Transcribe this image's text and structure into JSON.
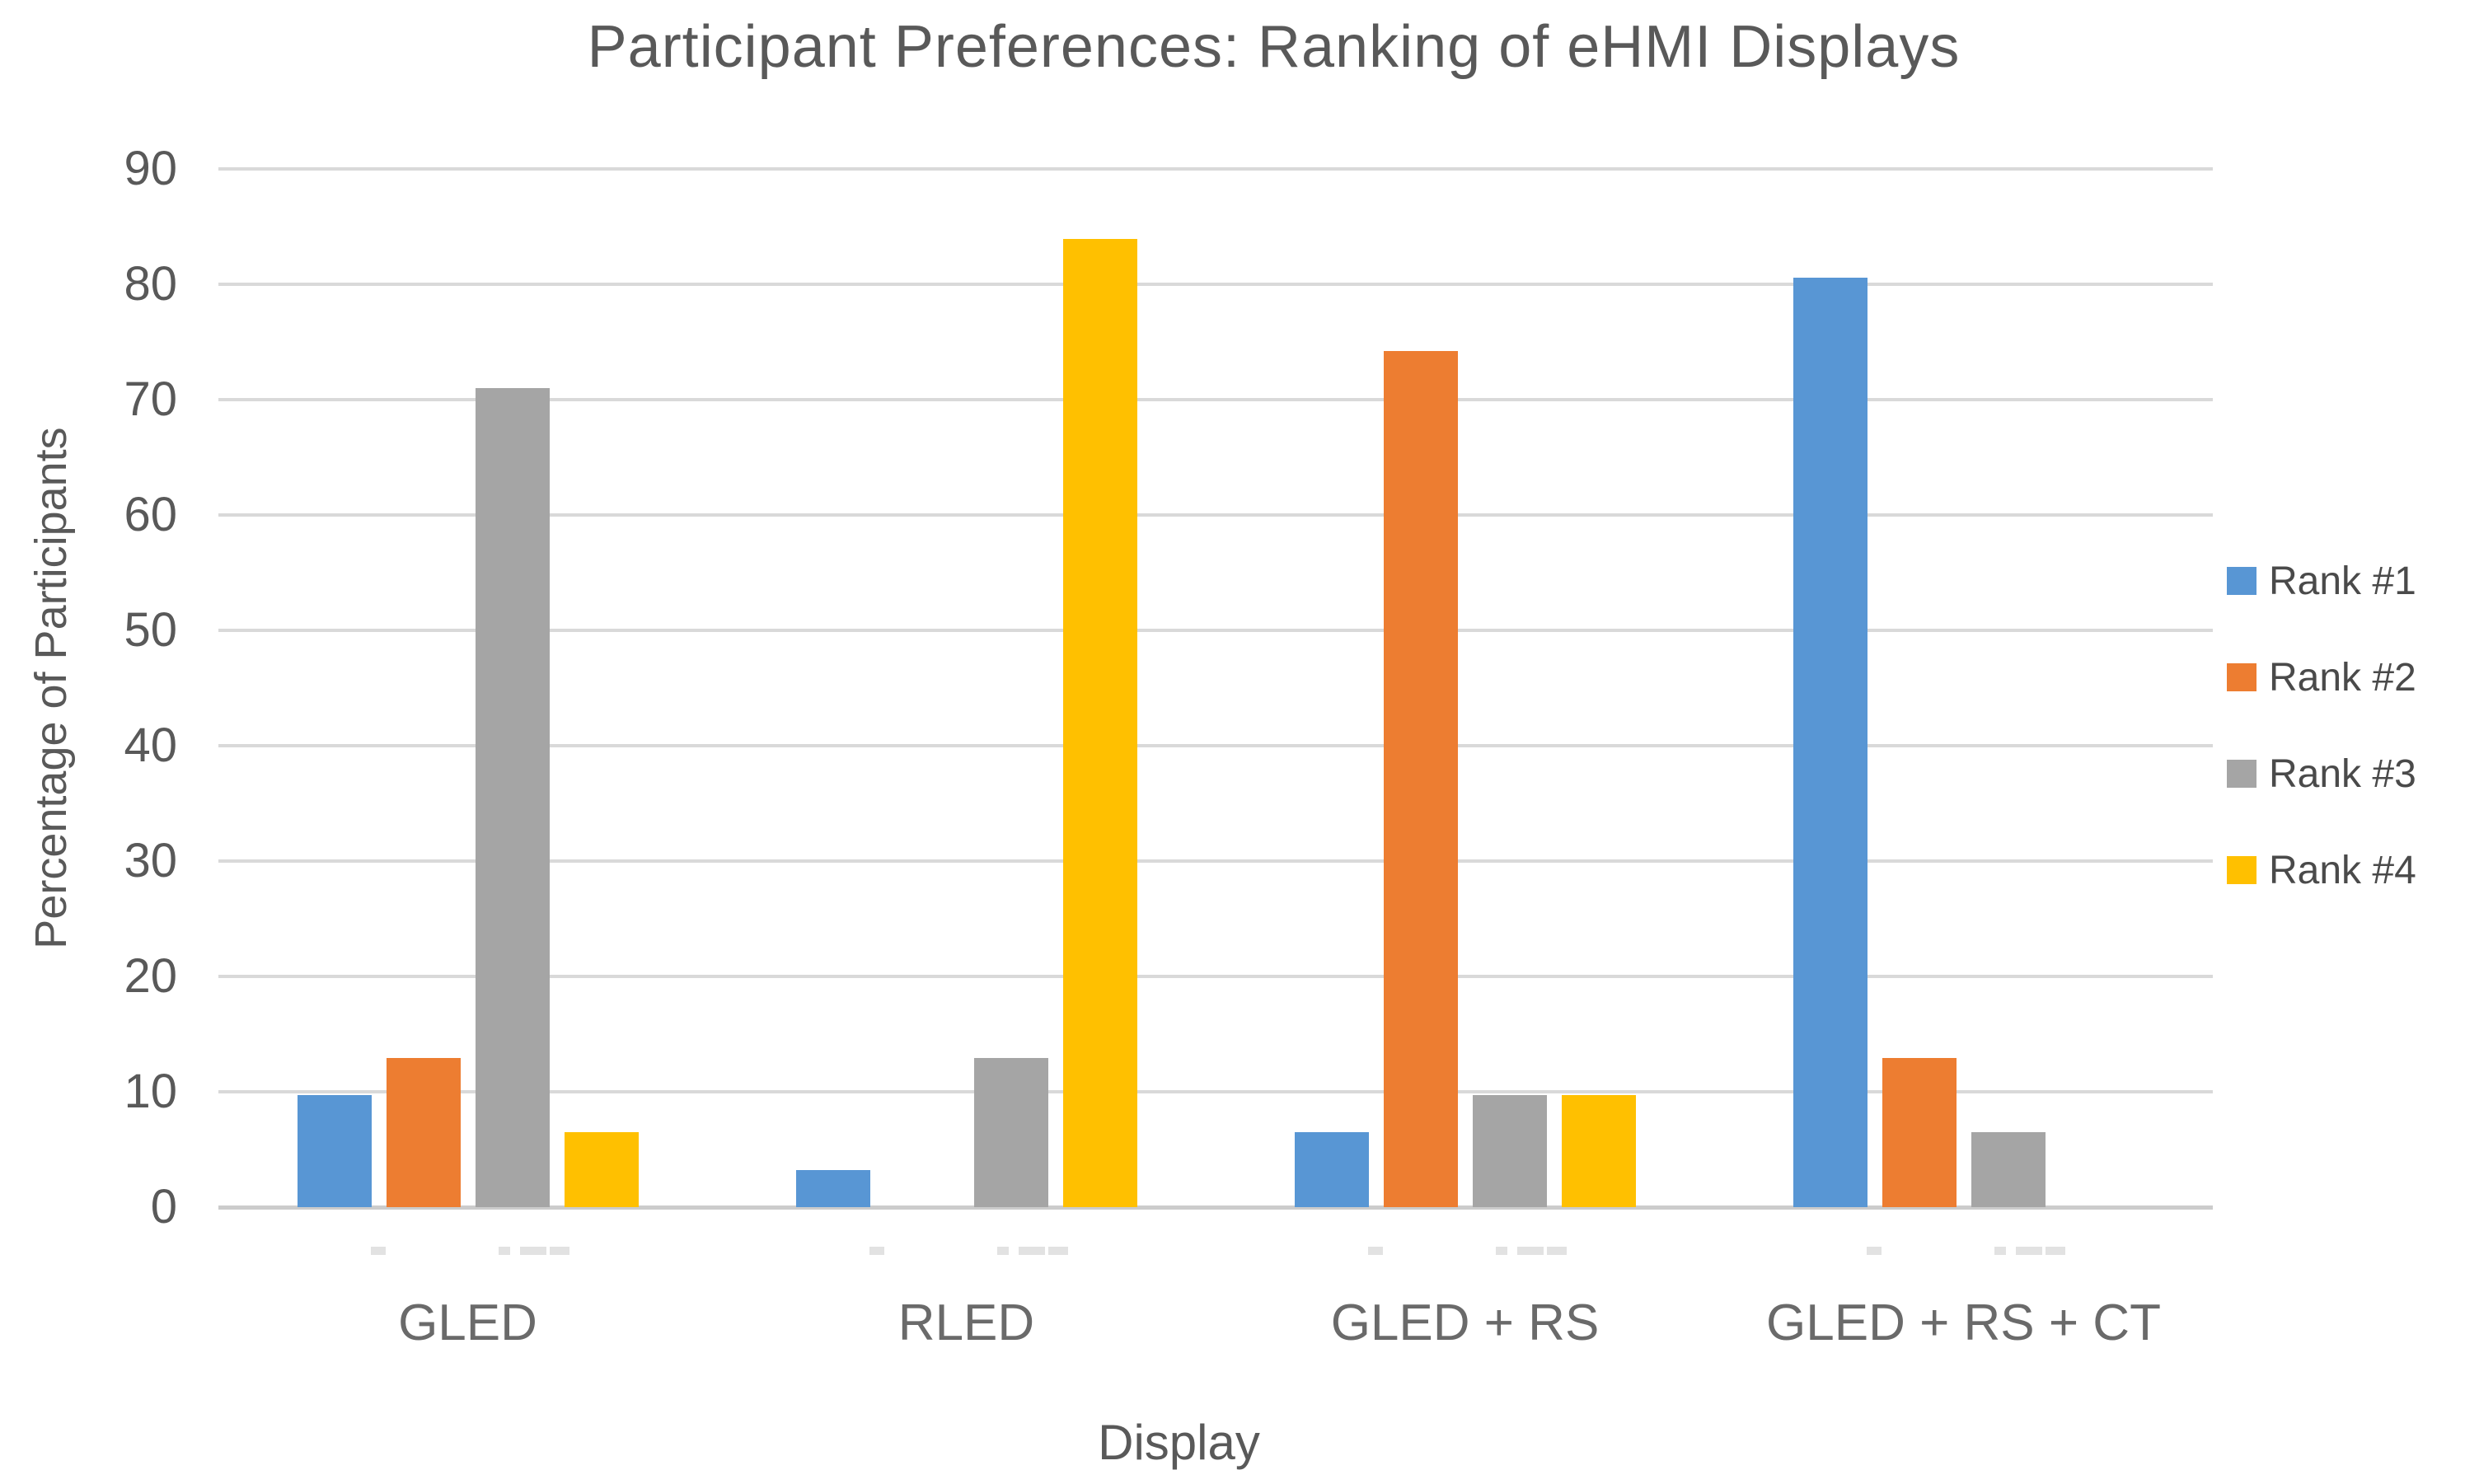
{
  "chart_data": {
    "type": "bar",
    "title": "Participant Preferences: Ranking of eHMI Displays",
    "xlabel": "Display",
    "ylabel": "Percentage of Participants",
    "ylim": [
      0,
      90
    ],
    "ytick_step": 10,
    "yticks": [
      0,
      10,
      20,
      30,
      40,
      50,
      60,
      70,
      80,
      90
    ],
    "grid": true,
    "legend_position": "right",
    "categories": [
      "GLED",
      "RLED",
      "GLED + RS",
      "GLED + RS + CT"
    ],
    "series": [
      {
        "name": "Rank #1",
        "color": "#5896d4",
        "values": [
          9.7,
          3.2,
          6.5,
          80.6
        ]
      },
      {
        "name": "Rank #2",
        "color": "#ed7d31",
        "values": [
          12.9,
          0,
          74.2,
          12.9
        ]
      },
      {
        "name": "Rank #3",
        "color": "#a5a5a5",
        "values": [
          71.0,
          12.9,
          9.7,
          6.5
        ]
      },
      {
        "name": "Rank #4",
        "color": "#ffc000",
        "values": [
          6.5,
          83.9,
          9.7,
          0
        ]
      }
    ]
  }
}
